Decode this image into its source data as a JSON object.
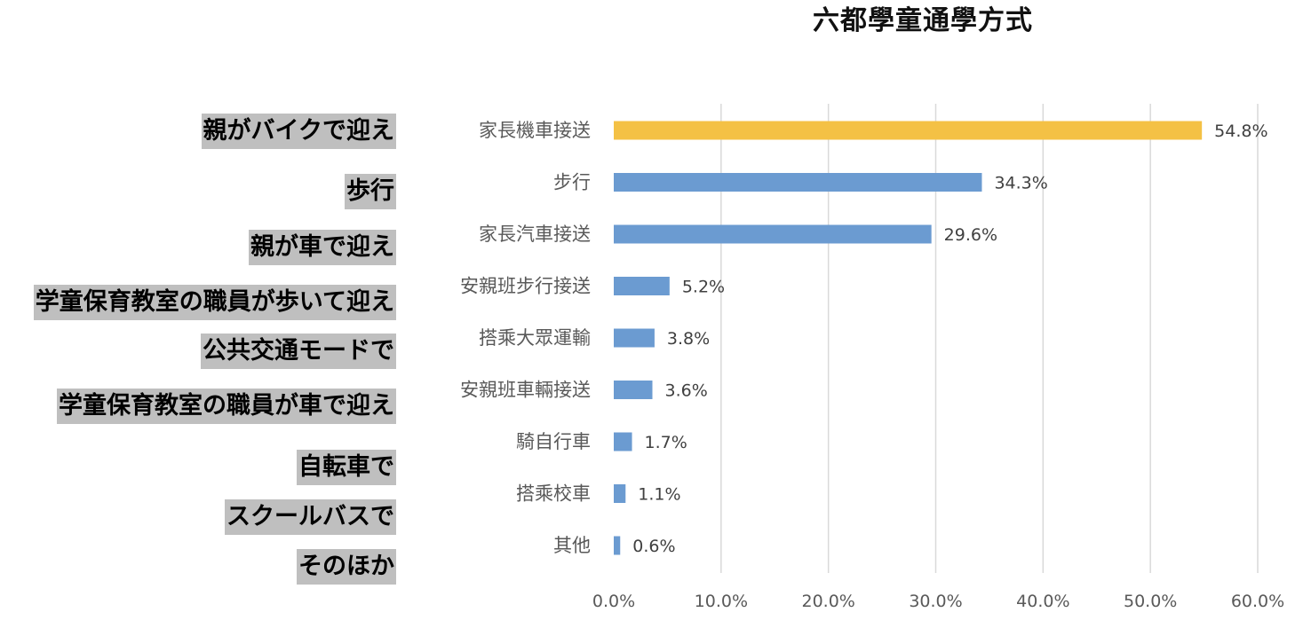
{
  "chart_data": {
    "type": "bar",
    "orientation": "horizontal",
    "title": "六都學童通學方式",
    "categories": [
      "家長機車接送",
      "步行",
      "家長汽車接送",
      "安親班步行接送",
      "搭乘大眾運輸",
      "安親班車輛接送",
      "騎自行車",
      "搭乘校車",
      "其他"
    ],
    "values": [
      54.8,
      34.3,
      29.6,
      5.2,
      3.8,
      3.6,
      1.7,
      1.1,
      0.6
    ],
    "value_labels": [
      "54.8%",
      "34.3%",
      "29.6%",
      "5.2%",
      "3.8%",
      "3.6%",
      "1.7%",
      "1.1%",
      "0.6%"
    ],
    "xlim": [
      0,
      60
    ],
    "x_ticks": [
      0,
      10,
      20,
      30,
      40,
      50,
      60
    ],
    "x_tick_labels": [
      "0.0%",
      "10.0%",
      "20.0%",
      "30.0%",
      "40.0%",
      "50.0%",
      "60.0%"
    ],
    "grid": true,
    "colors": {
      "default_bar": "#6b9bd1",
      "highlight_bar": "#f4c145",
      "gridline": "#d9d9d9"
    },
    "highlight_index": 0
  },
  "annotations": {
    "japanese_labels": [
      "親がバイクで迎え",
      "歩行",
      "親が車で迎え",
      "学童保育教室の職員が歩いて迎え",
      "公共交通モードで",
      "学童保育教室の職員が車で迎え",
      "自転車で",
      "スクールバスで",
      "そのほか"
    ],
    "label_background": "#bfbfbf"
  }
}
